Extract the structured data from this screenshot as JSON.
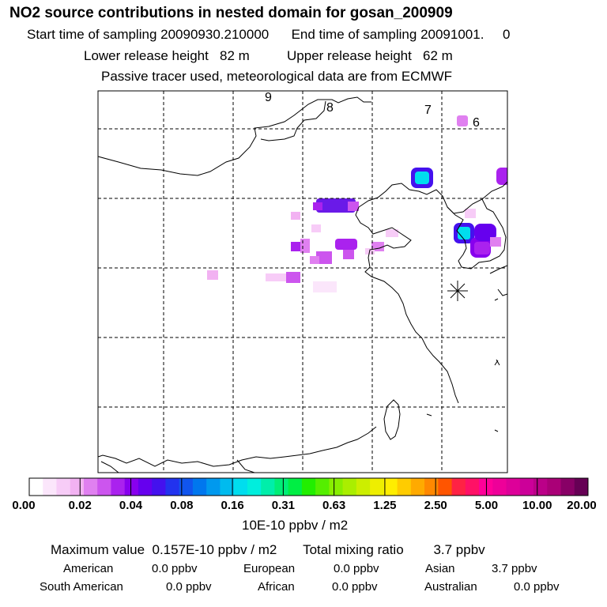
{
  "header": {
    "title": "NO2 source contributions in nested domain for gosan_200909",
    "start_label": "Start time of sampling",
    "start_value": "20090930.210000",
    "end_label": "End time of sampling",
    "end_value": "20091001.     0",
    "lower_label": "Lower release height",
    "lower_value": "82 m",
    "upper_label": "Upper release height",
    "upper_value": "62 m",
    "note": "Passive tracer used, meteorological data are from ECMWF"
  },
  "map": {
    "zone_labels": [
      "9",
      "8",
      "7",
      "6"
    ],
    "receptor_icon": "asterisk-receptor-icon"
  },
  "colorbar": {
    "ticks": [
      "0.00",
      "0.02",
      "0.04",
      "0.08",
      "0.16",
      "0.31",
      "0.63",
      "1.25",
      "2.50",
      "5.00",
      "10.00",
      "20.00"
    ],
    "unit": "10E-10 ppbv / m2",
    "colors": [
      "#ffffff",
      "#fbe6fb",
      "#f7ccf7",
      "#f2b2f2",
      "#e080f0",
      "#cc55ee",
      "#aa22ee",
      "#8800ee",
      "#6600ee",
      "#4411ee",
      "#2233ee",
      "#1155ee",
      "#0077ee",
      "#0099ee",
      "#00bbee",
      "#00ddee",
      "#00eedd",
      "#00eeaa",
      "#00ee77",
      "#00ee44",
      "#22ee00",
      "#55ee00",
      "#88ee00",
      "#aaee00",
      "#ccee00",
      "#eeee00",
      "#ffee00",
      "#ffcc00",
      "#ffaa00",
      "#ff8800",
      "#ff5500",
      "#ff2244",
      "#ff1166",
      "#ff0099",
      "#ee0099",
      "#dd0099",
      "#cc0099",
      "#bb0088",
      "#aa0077",
      "#880066",
      "#660055"
    ]
  },
  "summary": {
    "max_label": "Maximum value",
    "max_value": "0.157E-10 ppbv / m2",
    "total_label": "Total mixing ratio",
    "total_value": "3.7 ppbv",
    "american_label": "American",
    "american_value": "0.0 ppbv",
    "european_label": "European",
    "european_value": "0.0 ppbv",
    "asian_label": "Asian",
    "asian_value": "3.7 ppbv",
    "south_american_label": "South American",
    "south_american_value": "0.0 ppbv",
    "african_label": "African",
    "african_value": "0.0 ppbv",
    "australian_label": "Australian",
    "australian_value": "0.0 ppbv"
  }
}
